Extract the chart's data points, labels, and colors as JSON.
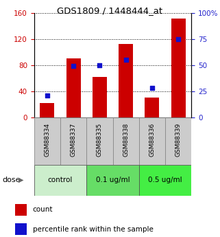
{
  "title": "GDS1809 / 1448444_at",
  "samples": [
    "GSM88334",
    "GSM88337",
    "GSM88335",
    "GSM88338",
    "GSM88336",
    "GSM88339"
  ],
  "counts": [
    22,
    90,
    62,
    113,
    30,
    152
  ],
  "percentiles": [
    21,
    49,
    50,
    55,
    28,
    75
  ],
  "ylim_left": [
    0,
    160
  ],
  "ylim_right": [
    0,
    100
  ],
  "yticks_left": [
    0,
    40,
    80,
    120,
    160
  ],
  "ytick_labels_left": [
    "0",
    "40",
    "80",
    "120",
    "160"
  ],
  "yticks_right": [
    0,
    25,
    50,
    75,
    100
  ],
  "ytick_labels_right": [
    "0",
    "25",
    "50",
    "75",
    "100%"
  ],
  "bar_color": "#cc0000",
  "dot_color": "#1111cc",
  "bar_width": 0.55,
  "plot_bg": "#ffffff",
  "label_color_left": "#cc0000",
  "label_color_right": "#2222cc",
  "group_defs": [
    {
      "label": "control",
      "start": 0,
      "end": 1,
      "color": "#cceecc"
    },
    {
      "label": "0.1 ug/ml",
      "start": 2,
      "end": 3,
      "color": "#66dd66"
    },
    {
      "label": "0.5 ug/ml",
      "start": 4,
      "end": 5,
      "color": "#44ee44"
    }
  ],
  "sample_bg": "#cccccc",
  "dose_label": "dose",
  "legend_count": "count",
  "legend_pct": "percentile rank within the sample"
}
